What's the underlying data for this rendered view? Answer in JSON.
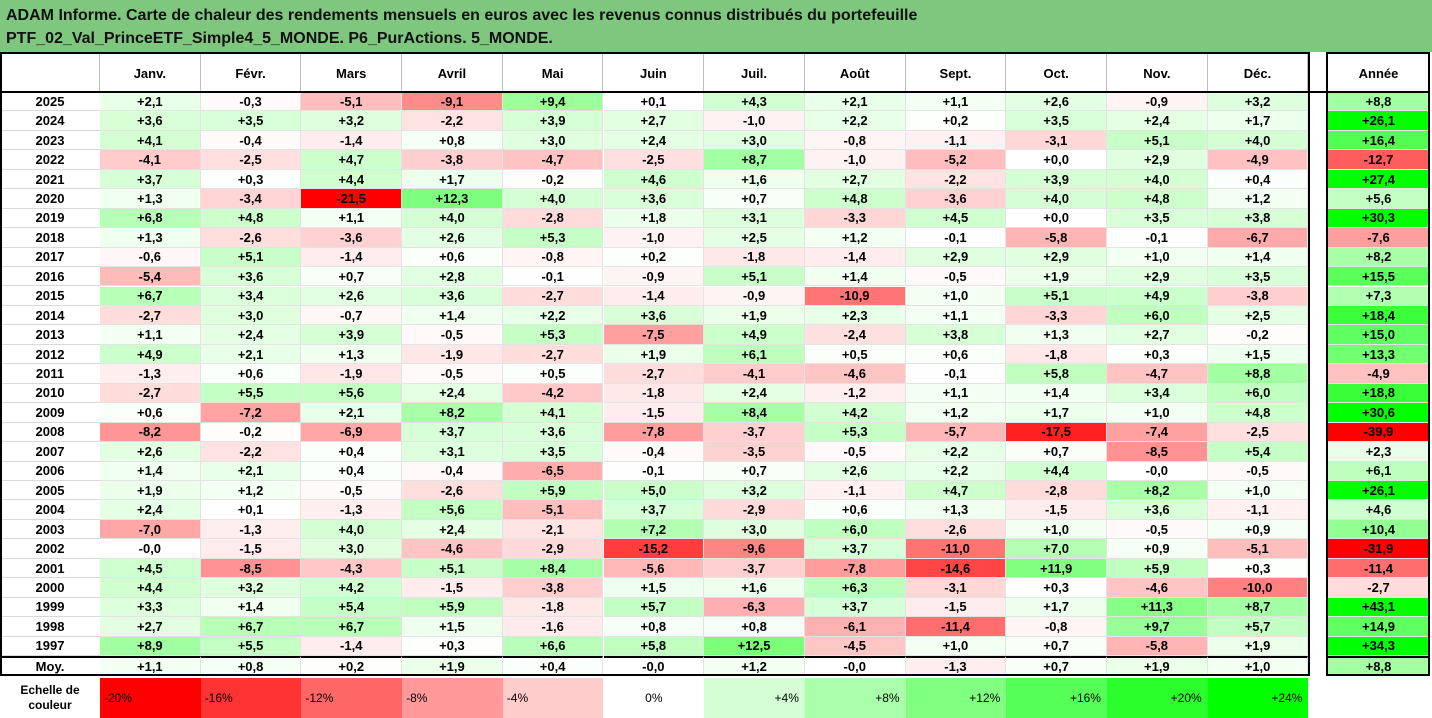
{
  "title_lines": [
    "ADAM Informe. Carte de chaleur des rendements mensuels en euros avec les revenus connus distribués du portefeuille",
    "PTF_02_Val_PrinceETF_Simple4_5_MONDE. P6_PurActions. 5_MONDE."
  ],
  "chart_data": {
    "type": "heatmap",
    "columns": [
      "Janv.",
      "Févr.",
      "Mars",
      "Avril",
      "Mai",
      "Juin",
      "Juil.",
      "Août",
      "Sept.",
      "Oct.",
      "Nov.",
      "Déc."
    ],
    "year_header": "Année",
    "rows": [
      {
        "year": "2025",
        "values": [
          "+2,1",
          "-0,3",
          "-5,1",
          "-9,1",
          "+9,4",
          "+0,1",
          "+4,3",
          "+2,1",
          "+1,1",
          "+2,6",
          "-0,9",
          "+3,2"
        ],
        "annual": "+8,8"
      },
      {
        "year": "2024",
        "values": [
          "+3,6",
          "+3,5",
          "+3,2",
          "-2,2",
          "+3,9",
          "+2,7",
          "-1,0",
          "+2,2",
          "+0,2",
          "+3,5",
          "+2,4",
          "+1,7"
        ],
        "annual": "+26,1"
      },
      {
        "year": "2023",
        "values": [
          "+4,1",
          "-0,4",
          "-1,4",
          "+0,8",
          "+3,0",
          "+2,4",
          "+3,0",
          "-0,8",
          "-1,1",
          "-3,1",
          "+5,1",
          "+4,0"
        ],
        "annual": "+16,4"
      },
      {
        "year": "2022",
        "values": [
          "-4,1",
          "-2,5",
          "+4,7",
          "-3,8",
          "-4,7",
          "-2,5",
          "+8,7",
          "-1,0",
          "-5,2",
          "+0,0",
          "+2,9",
          "-4,9"
        ],
        "annual": "-12,7"
      },
      {
        "year": "2021",
        "values": [
          "+3,7",
          "+0,3",
          "+4,4",
          "+1,7",
          "-0,2",
          "+4,6",
          "+1,6",
          "+2,7",
          "-2,2",
          "+3,9",
          "+4,0",
          "+0,4"
        ],
        "annual": "+27,4"
      },
      {
        "year": "2020",
        "values": [
          "+1,3",
          "-3,4",
          "-21,5",
          "+12,3",
          "+4,0",
          "+3,6",
          "+0,7",
          "+4,8",
          "-3,6",
          "+4,0",
          "+4,8",
          "+1,2"
        ],
        "annual": "+5,6"
      },
      {
        "year": "2019",
        "values": [
          "+6,8",
          "+4,8",
          "+1,1",
          "+4,0",
          "-2,8",
          "+1,8",
          "+3,1",
          "-3,3",
          "+4,5",
          "+0,0",
          "+3,5",
          "+3,8"
        ],
        "annual": "+30,3"
      },
      {
        "year": "2018",
        "values": [
          "+1,3",
          "-2,6",
          "-3,6",
          "+2,6",
          "+5,3",
          "-1,0",
          "+2,5",
          "+1,2",
          "-0,1",
          "-5,8",
          "-0,1",
          "-6,7"
        ],
        "annual": "-7,6"
      },
      {
        "year": "2017",
        "values": [
          "-0,6",
          "+5,1",
          "-1,4",
          "+0,6",
          "-0,8",
          "+0,2",
          "-1,8",
          "-1,4",
          "+2,9",
          "+2,9",
          "+1,0",
          "+1,4"
        ],
        "annual": "+8,2"
      },
      {
        "year": "2016",
        "values": [
          "-5,4",
          "+3,6",
          "+0,7",
          "+2,8",
          "-0,1",
          "-0,9",
          "+5,1",
          "+1,4",
          "-0,5",
          "+1,9",
          "+2,9",
          "+3,5"
        ],
        "annual": "+15,5"
      },
      {
        "year": "2015",
        "values": [
          "+6,7",
          "+3,4",
          "+2,6",
          "+3,6",
          "-2,7",
          "-1,4",
          "-0,9",
          "-10,9",
          "+1,0",
          "+5,1",
          "+4,9",
          "-3,8"
        ],
        "annual": "+7,3"
      },
      {
        "year": "2014",
        "values": [
          "-2,7",
          "+3,0",
          "-0,7",
          "+1,4",
          "+2,2",
          "+3,6",
          "+1,9",
          "+2,3",
          "+1,1",
          "-3,3",
          "+6,0",
          "+2,5"
        ],
        "annual": "+18,4"
      },
      {
        "year": "2013",
        "values": [
          "+1,1",
          "+2,4",
          "+3,9",
          "-0,5",
          "+5,3",
          "-7,5",
          "+4,9",
          "-2,4",
          "+3,8",
          "+1,3",
          "+2,7",
          "-0,2"
        ],
        "annual": "+15,0"
      },
      {
        "year": "2012",
        "values": [
          "+4,9",
          "+2,1",
          "+1,3",
          "-1,9",
          "-2,7",
          "+1,9",
          "+6,1",
          "+0,5",
          "+0,6",
          "-1,8",
          "+0,3",
          "+1,5"
        ],
        "annual": "+13,3"
      },
      {
        "year": "2011",
        "values": [
          "-1,3",
          "+0,6",
          "-1,9",
          "-0,5",
          "+0,5",
          "-2,7",
          "-4,1",
          "-4,6",
          "-0,1",
          "+5,8",
          "-4,7",
          "+8,8"
        ],
        "annual": "-4,9"
      },
      {
        "year": "2010",
        "values": [
          "-2,7",
          "+5,5",
          "+5,6",
          "+2,4",
          "-4,2",
          "-1,8",
          "+2,4",
          "-1,2",
          "+1,1",
          "+1,4",
          "+3,4",
          "+6,0"
        ],
        "annual": "+18,8"
      },
      {
        "year": "2009",
        "values": [
          "+0,6",
          "-7,2",
          "+2,1",
          "+8,2",
          "+4,1",
          "-1,5",
          "+8,4",
          "+4,2",
          "+1,2",
          "+1,7",
          "+1,0",
          "+4,8"
        ],
        "annual": "+30,6"
      },
      {
        "year": "2008",
        "values": [
          "-8,2",
          "-0,2",
          "-6,9",
          "+3,7",
          "+3,6",
          "-7,8",
          "-3,7",
          "+5,3",
          "-5,7",
          "-17,5",
          "-7,4",
          "-2,5"
        ],
        "annual": "-39,9"
      },
      {
        "year": "2007",
        "values": [
          "+2,6",
          "-2,2",
          "+0,4",
          "+3,1",
          "+3,5",
          "-0,4",
          "-3,5",
          "-0,5",
          "+2,2",
          "+0,7",
          "-8,5",
          "+5,4"
        ],
        "annual": "+2,3"
      },
      {
        "year": "2006",
        "values": [
          "+1,4",
          "+2,1",
          "+0,4",
          "-0,4",
          "-6,5",
          "-0,1",
          "+0,7",
          "+2,6",
          "+2,2",
          "+4,4",
          "-0,0",
          "-0,5"
        ],
        "annual": "+6,1"
      },
      {
        "year": "2005",
        "values": [
          "+1,9",
          "+1,2",
          "-0,5",
          "-2,6",
          "+5,9",
          "+5,0",
          "+3,2",
          "-1,1",
          "+4,7",
          "-2,8",
          "+8,2",
          "+1,0"
        ],
        "annual": "+26,1"
      },
      {
        "year": "2004",
        "values": [
          "+2,4",
          "+0,1",
          "-1,3",
          "+5,6",
          "-5,1",
          "+3,7",
          "-2,9",
          "+0,6",
          "+1,3",
          "-1,5",
          "+3,6",
          "-1,1"
        ],
        "annual": "+4,6"
      },
      {
        "year": "2003",
        "values": [
          "-7,0",
          "-1,3",
          "+4,0",
          "+2,4",
          "-2,1",
          "+7,2",
          "+3,0",
          "+6,0",
          "-2,6",
          "+1,0",
          "-0,5",
          "+0,9"
        ],
        "annual": "+10,4"
      },
      {
        "year": "2002",
        "values": [
          "-0,0",
          "-1,5",
          "+3,0",
          "-4,6",
          "-2,9",
          "-15,2",
          "-9,6",
          "+3,7",
          "-11,0",
          "+7,0",
          "+0,9",
          "-5,1"
        ],
        "annual": "-31,9"
      },
      {
        "year": "2001",
        "values": [
          "+4,5",
          "-8,5",
          "-4,3",
          "+5,1",
          "+8,4",
          "-5,6",
          "-3,7",
          "-7,8",
          "-14,6",
          "+11,9",
          "+5,9",
          "+0,3"
        ],
        "annual": "-11,4"
      },
      {
        "year": "2000",
        "values": [
          "+4,4",
          "+3,2",
          "+4,2",
          "-1,5",
          "-3,8",
          "+1,5",
          "+1,6",
          "+6,3",
          "-3,1",
          "+0,3",
          "-4,6",
          "-10,0"
        ],
        "annual": "-2,7"
      },
      {
        "year": "1999",
        "values": [
          "+3,3",
          "+1,4",
          "+5,4",
          "+5,9",
          "-1,8",
          "+5,7",
          "-6,3",
          "+3,7",
          "-1,5",
          "+1,7",
          "+11,3",
          "+8,7"
        ],
        "annual": "+43,1"
      },
      {
        "year": "1998",
        "values": [
          "+2,7",
          "+6,7",
          "+6,7",
          "+1,5",
          "-1,6",
          "+0,8",
          "+0,8",
          "-6,1",
          "-11,4",
          "-0,8",
          "+9,7",
          "+5,7"
        ],
        "annual": "+14,9"
      },
      {
        "year": "1997",
        "values": [
          "+8,9",
          "+5,5",
          "-1,4",
          "+0,3",
          "+6,6",
          "+5,8",
          "+12,5",
          "-4,5",
          "+1,0",
          "+0,7",
          "-5,8",
          "+1,9"
        ],
        "annual": "+34,3"
      }
    ],
    "average": {
      "label": "Moy.",
      "values": [
        "+1,1",
        "+0,8",
        "+0,2",
        "+1,9",
        "+0,4",
        "-0,0",
        "+1,2",
        "-0,0",
        "-1,3",
        "+0,7",
        "+1,9",
        "+1,0"
      ],
      "annual": "+8,8"
    },
    "color_scale": {
      "label": "Echelle de couleur",
      "steps": [
        {
          "label": "-20%",
          "value": -20,
          "color": "#ff0000"
        },
        {
          "label": "-16%",
          "value": -16,
          "color": "#ff3333"
        },
        {
          "label": "-12%",
          "value": -12,
          "color": "#ff6666"
        },
        {
          "label": "-8%",
          "value": -8,
          "color": "#ff9999"
        },
        {
          "label": "-4%",
          "value": -4,
          "color": "#ffcccc"
        },
        {
          "label": "0%",
          "value": 0,
          "color": "#ffffff"
        },
        {
          "label": "+4%",
          "value": 4,
          "color": "#d4ffd4"
        },
        {
          "label": "+8%",
          "value": 8,
          "color": "#aaffaa"
        },
        {
          "label": "+12%",
          "value": 12,
          "color": "#80ff80"
        },
        {
          "label": "+16%",
          "value": 16,
          "color": "#55ff55"
        },
        {
          "label": "+20%",
          "value": 20,
          "color": "#2bff2b"
        },
        {
          "label": "+24%",
          "value": 24,
          "color": "#00ff00"
        }
      ]
    }
  },
  "colors": {
    "title_band": "#7fc67f",
    "negative_max": "#ff0000",
    "positive_max": "#00ff00"
  }
}
